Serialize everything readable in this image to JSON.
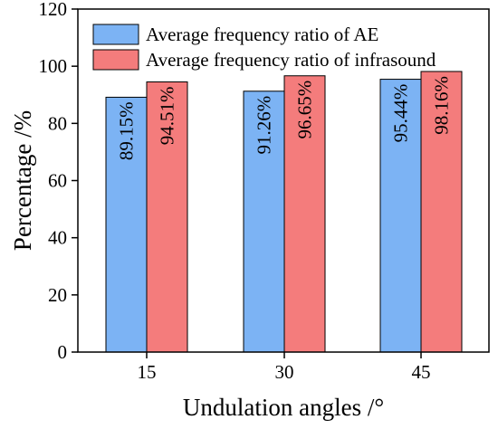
{
  "chart_data": {
    "type": "bar",
    "title": "",
    "xlabel": "Undulation angles /°",
    "ylabel": "Percentage /%",
    "categories": [
      "15",
      "30",
      "45"
    ],
    "ylim": [
      0,
      120
    ],
    "yticks": [
      "0",
      "20",
      "40",
      "60",
      "80",
      "100",
      "120"
    ],
    "grid": false,
    "legend_position": "top",
    "series": [
      {
        "name": "Average frequency ratio of AE",
        "color": "#7cb3f4",
        "values": [
          89.15,
          91.26,
          95.44
        ],
        "labels": [
          "89.15%",
          "91.26%",
          "95.44%"
        ]
      },
      {
        "name": "Average frequency ratio of infrasound",
        "color": "#f47c7c",
        "values": [
          94.51,
          96.65,
          98.16
        ],
        "labels": [
          "94.51%",
          "96.65%",
          "98.16%"
        ]
      }
    ]
  }
}
